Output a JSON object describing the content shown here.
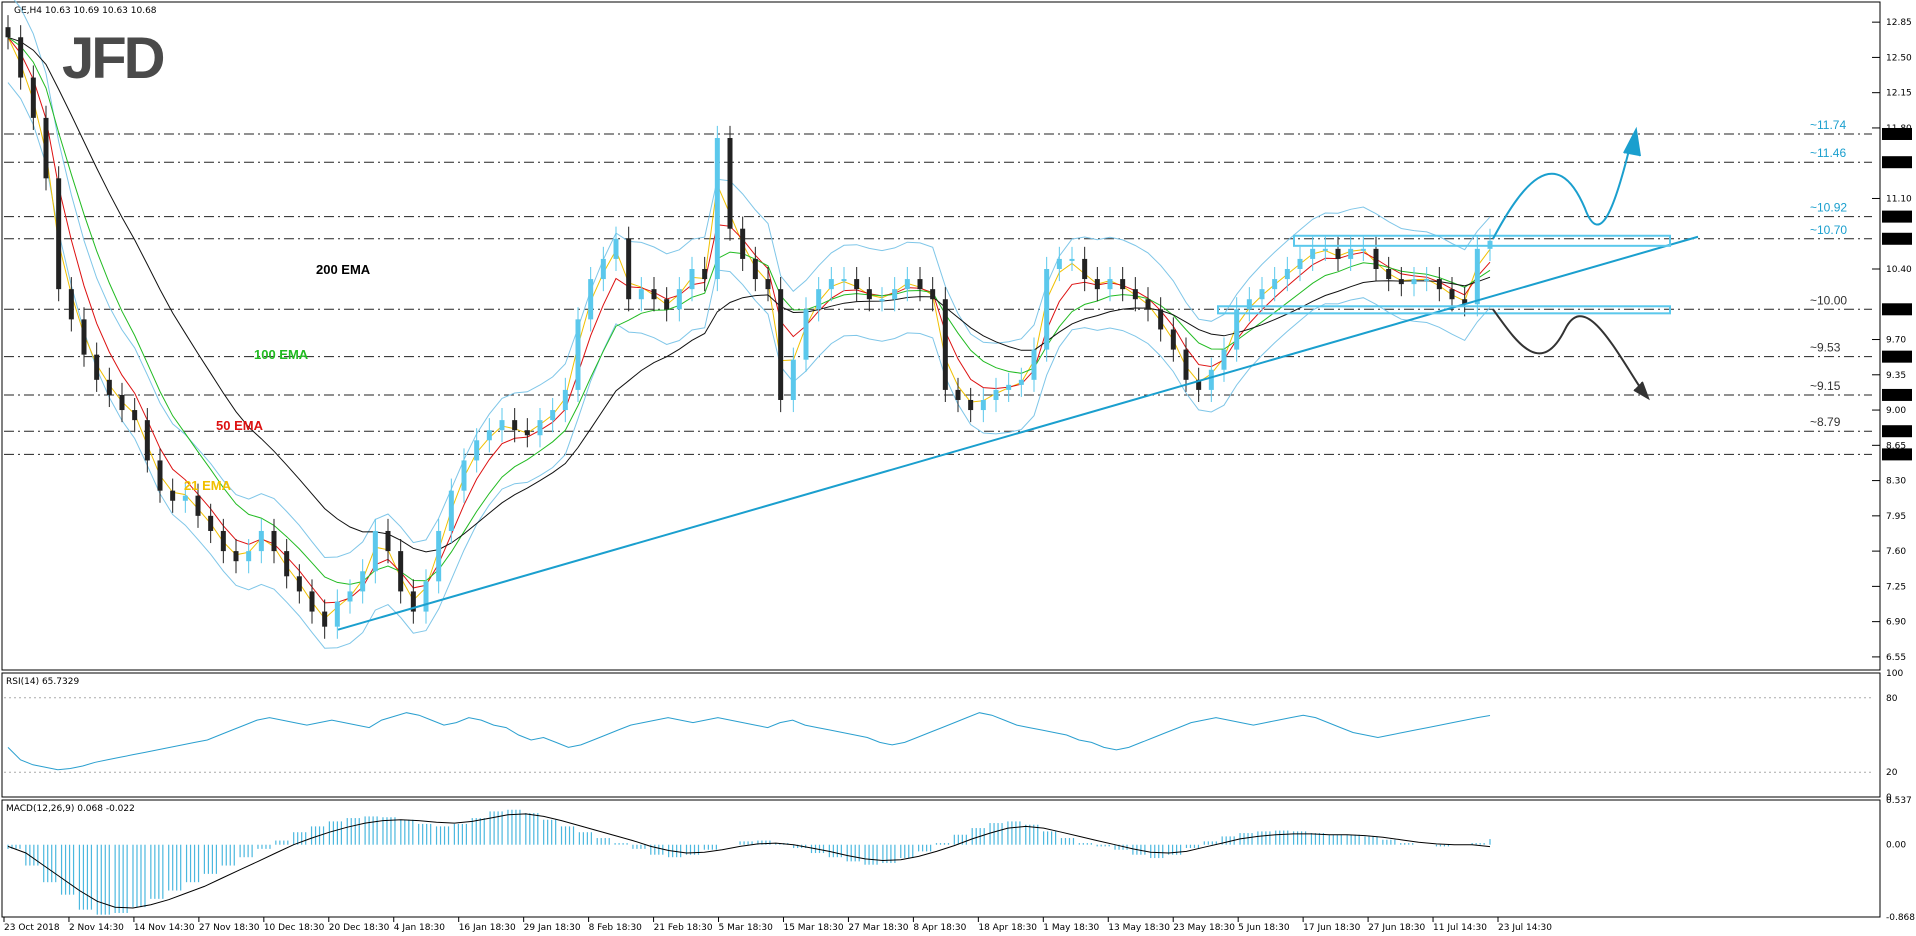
{
  "chart_data": {
    "type": "candlestick",
    "symbol_header": "GE,H4  10.63 10.69 10.63 10.68",
    "logo": "JFD",
    "x_tick_labels": [
      "23 Oct 2018",
      "2 Nov 14:30",
      "14 Nov 14:30",
      "27 Nov 18:30",
      "10 Dec 18:30",
      "20 Dec 18:30",
      "4 Jan 18:30",
      "16 Jan 18:30",
      "29 Jan 18:30",
      "8 Feb 18:30",
      "21 Feb 18:30",
      "5 Mar 18:30",
      "15 Mar 18:30",
      "27 Mar 18:30",
      "8 Apr 18:30",
      "18 Apr 18:30",
      "1 May 18:30",
      "13 May 18:30",
      "23 May 18:30",
      "5 Jun 18:30",
      "17 Jun 18:30",
      "27 Jun 18:30",
      "11 Jul 14:30",
      "23 Jul 14:30"
    ],
    "price_axis": {
      "range": [
        6.42,
        13.05
      ],
      "ticks": [
        12.85,
        12.5,
        12.15,
        11.8,
        11.1,
        10.4,
        9.7,
        9.35,
        9.0,
        8.65,
        8.3,
        7.95,
        7.6,
        7.25,
        6.9,
        6.55
      ]
    },
    "price_closes": [
      12.7,
      12.3,
      11.9,
      11.3,
      10.2,
      9.9,
      9.55,
      9.3,
      9.15,
      9.0,
      8.9,
      8.5,
      8.2,
      8.1,
      8.15,
      7.95,
      7.8,
      7.6,
      7.5,
      7.6,
      7.8,
      7.6,
      7.35,
      7.2,
      7.0,
      6.85,
      7.1,
      7.2,
      7.4,
      7.8,
      7.6,
      7.2,
      7.0,
      7.3,
      7.8,
      8.2,
      8.5,
      8.7,
      8.8,
      8.9,
      8.8,
      8.75,
      8.9,
      9.0,
      9.2,
      9.9,
      10.3,
      10.5,
      10.7,
      10.1,
      10.2,
      10.1,
      10.0,
      10.2,
      10.4,
      10.3,
      11.7,
      10.8,
      10.5,
      10.3,
      10.2,
      9.1,
      9.5,
      10.0,
      10.2,
      10.3,
      10.3,
      10.2,
      10.1,
      10.1,
      10.2,
      10.3,
      10.2,
      10.1,
      9.2,
      9.1,
      9.0,
      9.1,
      9.2,
      9.25,
      9.3,
      9.6,
      10.4,
      10.5,
      10.5,
      10.3,
      10.2,
      10.3,
      10.2,
      10.1,
      10.0,
      9.8,
      9.6,
      9.3,
      9.2,
      9.4,
      9.6,
      10.0,
      10.1,
      10.2,
      10.3,
      10.4,
      10.5,
      10.6,
      10.6,
      10.5,
      10.6,
      10.6,
      10.4,
      10.3,
      10.25,
      10.3,
      10.3,
      10.2,
      10.1,
      10.05,
      10.6,
      10.68
    ],
    "levels": [
      {
        "label": "~11.74",
        "value": 11.74,
        "box": "11.74",
        "color": "#1a9fce"
      },
      {
        "label": "~11.46",
        "value": 11.46,
        "box": "11.46",
        "color": "#1a9fce"
      },
      {
        "label": "~10.92",
        "value": 10.92,
        "box": "10.92",
        "color": "#1a9fce"
      },
      {
        "label": "~10.70",
        "value": 10.7,
        "box": "10.70",
        "color": "#1a9fce"
      },
      {
        "label": "~10.00",
        "value": 10.0,
        "box": "10.00",
        "color": "#333333"
      },
      {
        "label": "~9.53",
        "value": 9.53,
        "box": "9.53",
        "color": "#333333"
      },
      {
        "label": "~9.15",
        "value": 9.15,
        "box": "9.15",
        "color": "#333333"
      },
      {
        "label": "~8.79",
        "value": 8.79,
        "box": "8.79",
        "color": "#333333"
      },
      {
        "label": "",
        "value": 8.56,
        "box": "8.56",
        "color": "#333333"
      }
    ],
    "ema_labels": [
      {
        "text": "200 EMA",
        "color": "#000000"
      },
      {
        "text": "100 EMA",
        "color": "#22bb22"
      },
      {
        "text": "50 EMA",
        "color": "#dd1111"
      },
      {
        "text": "21 EMA",
        "color": "#f0c000"
      }
    ],
    "rsi": {
      "header": "RSI(14) 65.7329",
      "ticks": [
        100,
        80,
        20,
        0
      ],
      "values": [
        40,
        30,
        26,
        24,
        22,
        23,
        25,
        28,
        30,
        32,
        34,
        36,
        38,
        40,
        42,
        44,
        46,
        50,
        54,
        58,
        62,
        64,
        62,
        60,
        58,
        60,
        62,
        60,
        58,
        56,
        62,
        65,
        68,
        66,
        62,
        58,
        60,
        64,
        62,
        58,
        56,
        50,
        46,
        48,
        44,
        40,
        42,
        46,
        50,
        54,
        58,
        60,
        62,
        64,
        62,
        60,
        62,
        64,
        62,
        60,
        58,
        56,
        60,
        62,
        58,
        56,
        54,
        52,
        50,
        48,
        44,
        42,
        44,
        48,
        52,
        56,
        60,
        64,
        68,
        66,
        62,
        58,
        56,
        54,
        52,
        50,
        46,
        44,
        40,
        38,
        40,
        44,
        48,
        52,
        56,
        60,
        62,
        64,
        62,
        60,
        58,
        60,
        62,
        64,
        66,
        64,
        60,
        56,
        52,
        50,
        48,
        50,
        52,
        54,
        56,
        58,
        60,
        62,
        64,
        65.73
      ],
      "range": [
        0,
        100
      ]
    },
    "macd": {
      "header": "MACD(12,26,9) 0.068 -0.022",
      "ticks": [
        0.537,
        0.0,
        -0.868
      ],
      "range": [
        -0.868,
        0.537
      ],
      "values": [
        -0.05,
        -0.25,
        -0.45,
        -0.6,
        -0.78,
        -0.84,
        -0.82,
        -0.75,
        -0.65,
        -0.55,
        -0.45,
        -0.35,
        -0.25,
        -0.15,
        -0.05,
        0.05,
        0.15,
        0.22,
        0.28,
        0.32,
        0.34,
        0.33,
        0.3,
        0.25,
        0.22,
        0.25,
        0.32,
        0.4,
        0.42,
        0.38,
        0.3,
        0.22,
        0.15,
        0.08,
        0.02,
        -0.05,
        -0.12,
        -0.15,
        -0.12,
        -0.06,
        0.0,
        0.04,
        0.05,
        0.02,
        -0.04,
        -0.1,
        -0.15,
        -0.2,
        -0.24,
        -0.22,
        -0.16,
        -0.08,
        0.02,
        0.12,
        0.2,
        0.26,
        0.28,
        0.24,
        0.16,
        0.08,
        0.02,
        -0.02,
        -0.06,
        -0.12,
        -0.16,
        -0.12,
        -0.04,
        0.04,
        0.1,
        0.14,
        0.16,
        0.17,
        0.16,
        0.14,
        0.12,
        0.12,
        0.1,
        0.06,
        0.02,
        0.0,
        -0.02,
        0.0,
        0.02,
        0.068
      ],
      "signal": [
        -0.02,
        -0.1,
        -0.25,
        -0.4,
        -0.55,
        -0.68,
        -0.75,
        -0.76,
        -0.72,
        -0.66,
        -0.58,
        -0.5,
        -0.4,
        -0.3,
        -0.2,
        -0.1,
        0.0,
        0.08,
        0.15,
        0.21,
        0.26,
        0.29,
        0.3,
        0.29,
        0.27,
        0.26,
        0.28,
        0.32,
        0.36,
        0.37,
        0.34,
        0.29,
        0.23,
        0.17,
        0.11,
        0.05,
        -0.02,
        -0.07,
        -0.1,
        -0.09,
        -0.06,
        -0.02,
        0.01,
        0.02,
        0.0,
        -0.04,
        -0.08,
        -0.13,
        -0.17,
        -0.19,
        -0.18,
        -0.14,
        -0.08,
        -0.01,
        0.07,
        0.14,
        0.2,
        0.22,
        0.2,
        0.15,
        0.1,
        0.05,
        0.0,
        -0.05,
        -0.09,
        -0.1,
        -0.08,
        -0.03,
        0.02,
        0.07,
        0.1,
        0.12,
        0.13,
        0.13,
        0.12,
        0.12,
        0.11,
        0.09,
        0.06,
        0.03,
        0.01,
        0.0,
        0.0,
        -0.022
      ]
    }
  }
}
